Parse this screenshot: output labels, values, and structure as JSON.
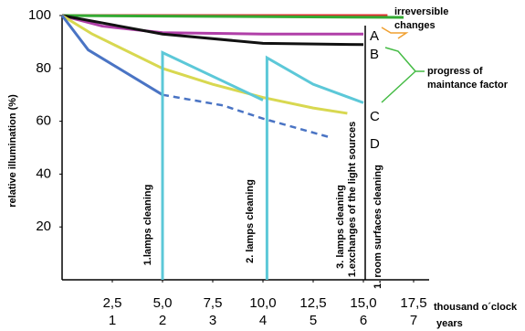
{
  "chart_data": {
    "type": "line",
    "y_label": "relative illumination  (%)",
    "x_label": "thousand o´clock",
    "x2_label": "years",
    "x2_labels": [
      "1",
      "2",
      "3",
      "4",
      "5",
      "6",
      "7"
    ],
    "xlim": [
      0,
      18.5
    ],
    "xticks": [
      {
        "value": 2.5,
        "label": "2,5"
      },
      {
        "value": 5,
        "label": "5,0"
      },
      {
        "value": 7.5,
        "label": "7,5"
      },
      {
        "value": 10,
        "label": "10,0"
      },
      {
        "value": 12.5,
        "label": "12,5"
      },
      {
        "value": 15,
        "label": "15,0"
      },
      {
        "value": 17.5,
        "label": "17,5"
      }
    ],
    "ylim": [
      0,
      100
    ],
    "yticks": [
      20,
      40,
      60,
      80,
      100
    ],
    "series": [
      {
        "color": "#e03030",
        "x": [
          0,
          16.2
        ],
        "values": [
          100,
          100
        ]
      },
      {
        "color": "#33aa33",
        "x": [
          0,
          17
        ],
        "values": [
          100,
          99.3
        ]
      },
      {
        "color": "#b03fa8",
        "x": [
          0,
          2,
          5,
          10,
          15
        ],
        "values": [
          100,
          96,
          93.5,
          93,
          93
        ]
      },
      {
        "color": "#111111",
        "x": [
          0,
          5,
          10,
          15
        ],
        "values": [
          100,
          93,
          89.5,
          89
        ]
      },
      {
        "color": "#d8d850",
        "x": [
          0,
          1.5,
          5,
          7.5,
          10,
          12.5,
          14.2
        ],
        "values": [
          100,
          93,
          80,
          74,
          69,
          65,
          63
        ]
      },
      {
        "color": "#4a74c4",
        "x": [
          0,
          1.3,
          5
        ],
        "values": [
          100,
          87,
          70
        ]
      },
      {
        "color": "#4a74c4",
        "dash": true,
        "x": [
          5,
          8,
          10,
          13.3
        ],
        "values": [
          70,
          66,
          61,
          54
        ]
      },
      {
        "color": "#5cc8d8",
        "x": [
          5,
          5,
          10,
          null,
          10.2,
          10.2,
          12.5,
          15
        ],
        "values": [
          0,
          86,
          68,
          null,
          0,
          84,
          74,
          67
        ]
      }
    ],
    "annotations": [
      "A",
      "B",
      "C",
      "D",
      "irreversible",
      "changes",
      "progress of",
      "maintance factor",
      "1.lamps cleaning",
      "2. lamps cleaning",
      "3. lamps cleaning",
      "1.exchanges of the light sources",
      "1. room surfaces cleaning"
    ]
  }
}
